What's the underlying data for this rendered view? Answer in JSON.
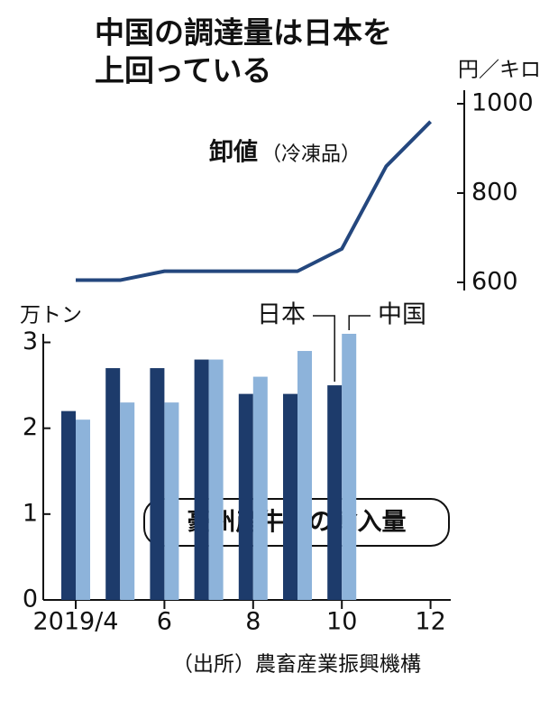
{
  "title": [
    "中国の調達量は日本を",
    "上回っている"
  ],
  "source": "（出所）農畜産業振興機構",
  "chart_data": [
    {
      "type": "line",
      "series_label": "卸値",
      "series_note": "（冷凍品）",
      "y_label": "円／キロ",
      "values": [
        605,
        605,
        625,
        625,
        625,
        625,
        675,
        860,
        960
      ],
      "color": "#24477e",
      "ylim": [
        600,
        1000
      ],
      "yticks": [
        600,
        800,
        1000
      ],
      "axis_side": "right"
    },
    {
      "type": "bar",
      "y_label": "万トン",
      "annotation": "豪州産牛肉の輸入量",
      "categories": [
        "2019/4",
        null,
        "6",
        null,
        "8",
        null,
        "10",
        null,
        "12"
      ],
      "series": [
        {
          "name": "日本",
          "color": "#1d3b6b",
          "values": [
            2.2,
            2.7,
            2.7,
            2.8,
            2.4,
            2.4,
            2.5,
            null,
            null
          ]
        },
        {
          "name": "中国",
          "color": "#8db3da",
          "values": [
            2.1,
            2.3,
            2.3,
            2.8,
            2.6,
            2.9,
            3.1,
            null,
            null
          ]
        }
      ],
      "ylim": [
        0,
        3.1
      ],
      "yticks": [
        0,
        1,
        2,
        3
      ]
    }
  ]
}
